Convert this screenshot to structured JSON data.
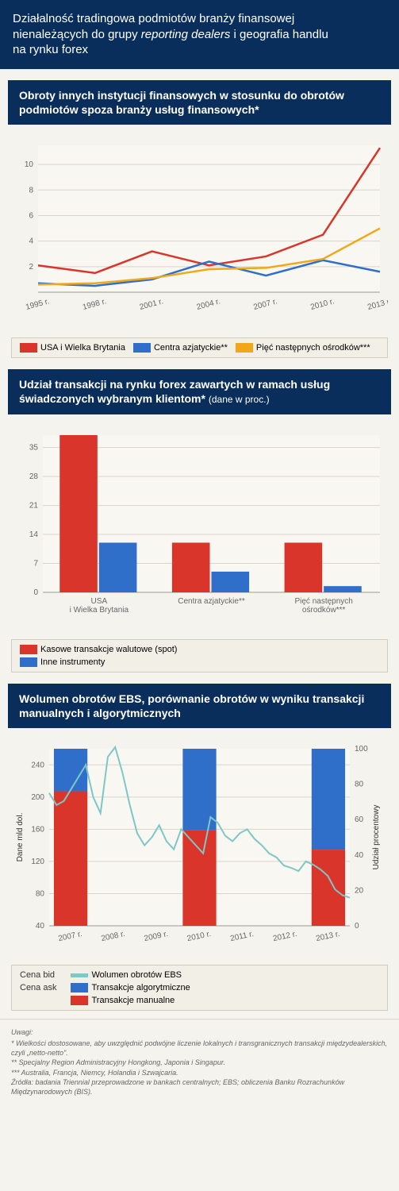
{
  "header": {
    "line1": "Działalność tradingowa podmiotów branży finansowej",
    "line2a": "nienależących do grupy ",
    "line2em": "reporting dealers",
    "line2b": " i geografia handlu",
    "line3": "na rynku forex"
  },
  "chart1": {
    "title": "Obroty innych instytucji finansowych w stosunku do obrotów podmiotów spoza branży usług finansowych*",
    "type": "line",
    "categories": [
      "1995 r.",
      "1998 r.",
      "2001 r.",
      "2004 r.",
      "2007 r.",
      "2010 r.",
      "2013 r."
    ],
    "ylim": [
      0,
      11.5
    ],
    "yticks": [
      2,
      4,
      6,
      8,
      10
    ],
    "series": [
      {
        "name": "USA i Wielka Brytania",
        "color": "#d9352b",
        "values": [
          2.1,
          1.5,
          3.2,
          2.1,
          2.8,
          4.5,
          11.3
        ]
      },
      {
        "name": "Centra azjatyckie**",
        "color": "#2f6fc9",
        "values": [
          0.7,
          0.5,
          1.0,
          2.4,
          1.3,
          2.5,
          1.6
        ]
      },
      {
        "name": "Pięć następnych ośrodków***",
        "color": "#f0a818",
        "values": [
          0.6,
          0.7,
          1.1,
          1.8,
          1.9,
          2.6,
          5.0
        ]
      }
    ],
    "legend_order": [
      0,
      1,
      2
    ],
    "background_color": "#f9f7f1",
    "grid_color": "#d8d5cc",
    "line_width": 2.5
  },
  "chart2": {
    "title_main": "Udział transakcji na rynku forex zawartych w ramach usług świadczonych wybranym klientom* ",
    "title_sub": "(dane w proc.)",
    "type": "grouped-bar",
    "categories": [
      "USA\ni Wielka Brytania",
      "Centra azjatyckie**",
      "Pięć następnych\nośrodków***"
    ],
    "ylim": [
      0,
      38
    ],
    "yticks": [
      0,
      7,
      14,
      21,
      28,
      35
    ],
    "series": [
      {
        "name": "Kasowe transakcje walutowe (spot)",
        "color": "#d9352b",
        "values": [
          38,
          12,
          12
        ]
      },
      {
        "name": "Inne instrumenty",
        "color": "#2f6fc9",
        "values": [
          12,
          5,
          1.5
        ]
      }
    ],
    "background_color": "#f9f7f1",
    "grid_color": "#d8d5cc",
    "bar_width": 0.35
  },
  "chart3": {
    "title": "Wolumen obrotów EBS, porównanie obrotów w wyniku transakcji manualnych i algorytmicznych",
    "type": "combo",
    "categories": [
      "2007 r.",
      "2008 r.",
      "2009 r.",
      "2010 r.",
      "2011 r.",
      "2012 r.",
      "2013 r."
    ],
    "ylabel_left": "Dane mld dol.",
    "ylabel_right": "Udział procentowy",
    "ylim_left": [
      40,
      260
    ],
    "yticks_left": [
      40,
      80,
      120,
      160,
      200,
      240
    ],
    "ylim_right": [
      0,
      100
    ],
    "yticks_right": [
      0,
      20,
      40,
      60,
      80,
      100
    ],
    "bars": {
      "years": [
        2007,
        2010,
        2013
      ],
      "algo_color": "#2f6fc9",
      "manual_color": "#d9352b",
      "algo_values": [
        24,
        46,
        57
      ],
      "manual_values": [
        76,
        54,
        43
      ]
    },
    "line": {
      "color": "#7fc7c7",
      "width": 2,
      "points": [
        205,
        190,
        195,
        210,
        225,
        240,
        200,
        180,
        250,
        262,
        230,
        190,
        155,
        140,
        150,
        165,
        145,
        135,
        160,
        150,
        140,
        130,
        175,
        168,
        152,
        145,
        155,
        160,
        148,
        140,
        130,
        125,
        115,
        112,
        108,
        120,
        116,
        110,
        102,
        85,
        78,
        75
      ]
    },
    "legend": {
      "col_labels": [
        "Cena bid",
        "Cena ask"
      ],
      "items": [
        {
          "name": "Wolumen obrotów EBS",
          "color": "#7fc7c7",
          "type": "line"
        },
        {
          "name": "Transakcje algorytmiczne",
          "color": "#2f6fc9",
          "type": "swatch"
        },
        {
          "name": "Transakcje manualne",
          "color": "#d9352b",
          "type": "swatch"
        }
      ]
    },
    "background_color": "#f9f7f1",
    "grid_color": "#d8d5cc"
  },
  "notes": {
    "title": "Uwagi:",
    "lines": [
      "* Wielkości dostosowane, aby uwzględnić podwójne liczenie lokalnych i transgranicznych transakcji międzydealerskich, czyli „netto-netto\".",
      "** Specjalny Region Administracyjny Hongkong, Japonia i Singapur.",
      "*** Australia, Francja, Niemcy, Holandia i Szwajcaria.",
      "Źródła: badania Triennial przeprowadzone w bankach centralnych; EBS; obliczenia Banku Rozrachunków Międzynarodowych (BIS)."
    ]
  }
}
